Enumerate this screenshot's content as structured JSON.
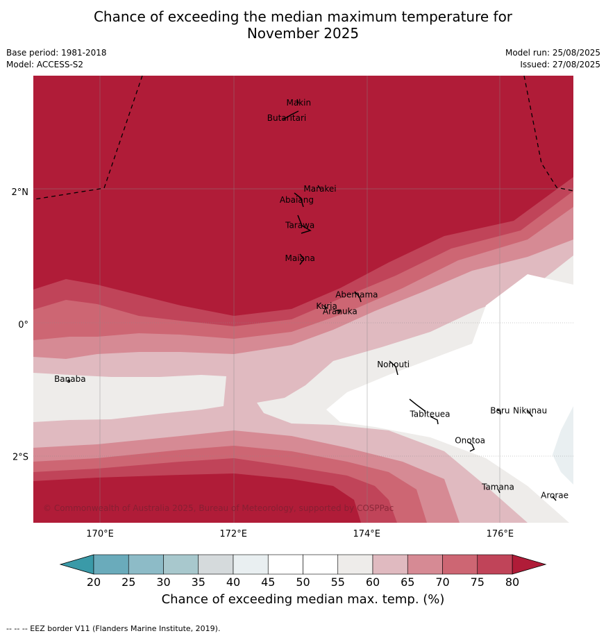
{
  "title_line1": "Chance of exceeding the median maximum temperature for",
  "title_line2": "November 2025",
  "meta_left": [
    "Base period: 1981-2018",
    "Model: ACCESS-S2"
  ],
  "meta_right": [
    "Model run: 25/08/2025",
    "Issued: 27/08/2025"
  ],
  "map": {
    "lon_range": [
      169,
      177.1
    ],
    "lat_range": [
      -3.0,
      3.75
    ],
    "lon_ticks": [
      {
        "v": 170,
        "label": "170°E"
      },
      {
        "v": 172,
        "label": "172°E"
      },
      {
        "v": 174,
        "label": "174°E"
      },
      {
        "v": 176,
        "label": "176°E"
      }
    ],
    "lat_ticks": [
      {
        "v": 2,
        "label": "2°N"
      },
      {
        "v": 0,
        "label": "0°"
      },
      {
        "v": -2,
        "label": "2°S"
      }
    ],
    "islands": [
      {
        "name": "Makin",
        "lon": 172.98,
        "lat": 3.3
      },
      {
        "name": "Butaritari",
        "lon": 172.8,
        "lat": 3.07
      },
      {
        "name": "Marakei",
        "lon": 173.3,
        "lat": 2.0
      },
      {
        "name": "Abaiang",
        "lon": 172.95,
        "lat": 1.83
      },
      {
        "name": "Tarawa",
        "lon": 173.0,
        "lat": 1.45
      },
      {
        "name": "Maiana",
        "lon": 173.0,
        "lat": 0.95
      },
      {
        "name": "Abemama",
        "lon": 173.85,
        "lat": 0.4
      },
      {
        "name": "Kuria",
        "lon": 173.4,
        "lat": 0.23
      },
      {
        "name": "Aranuka",
        "lon": 173.6,
        "lat": 0.15
      },
      {
        "name": "Banaba",
        "lon": 169.55,
        "lat": -0.87
      },
      {
        "name": "Nonouti",
        "lon": 174.4,
        "lat": -0.65
      },
      {
        "name": "Tabiteuea",
        "lon": 174.95,
        "lat": -1.4
      },
      {
        "name": "Beru",
        "lon": 176.0,
        "lat": -1.35
      },
      {
        "name": "Nikunau",
        "lon": 176.45,
        "lat": -1.35
      },
      {
        "name": "Onotoa",
        "lon": 175.55,
        "lat": -1.8
      },
      {
        "name": "Tamana",
        "lon": 175.97,
        "lat": -2.5
      },
      {
        "name": "Arorae",
        "lon": 176.82,
        "lat": -2.63
      }
    ],
    "copyright": "© Commonwealth of Australia 2025, Bureau of Meteorology, supported by COSPPac",
    "colors": {
      "80plus": "#b01c38",
      "75_80": "#c04459",
      "70_75": "#cd6673",
      "65_70": "#d68a94",
      "60_65": "#e0bac0",
      "55_60": "#eeecea",
      "45_55": "#ffffff",
      "40_45": "#e9eff1"
    }
  },
  "colorbar": {
    "ticks": [
      "20",
      "25",
      "30",
      "35",
      "40",
      "45",
      "50",
      "55",
      "60",
      "65",
      "70",
      "75",
      "80"
    ],
    "colors": [
      "#6aabbb",
      "#8dbbc7",
      "#a8c8cd",
      "#d5dadc",
      "#e9eff1",
      "#ffffff",
      "#ffffff",
      "#eeecea",
      "#e0bac0",
      "#d68a94",
      "#cd6673",
      "#c04459"
    ],
    "low_color": "#3a9aa8",
    "high_color": "#b01c38",
    "label": "Chance of exceeding median max. temp. (%)"
  },
  "footer": "--  --  -- EEZ border V11 (Flanders Marine Institute, 2019)."
}
